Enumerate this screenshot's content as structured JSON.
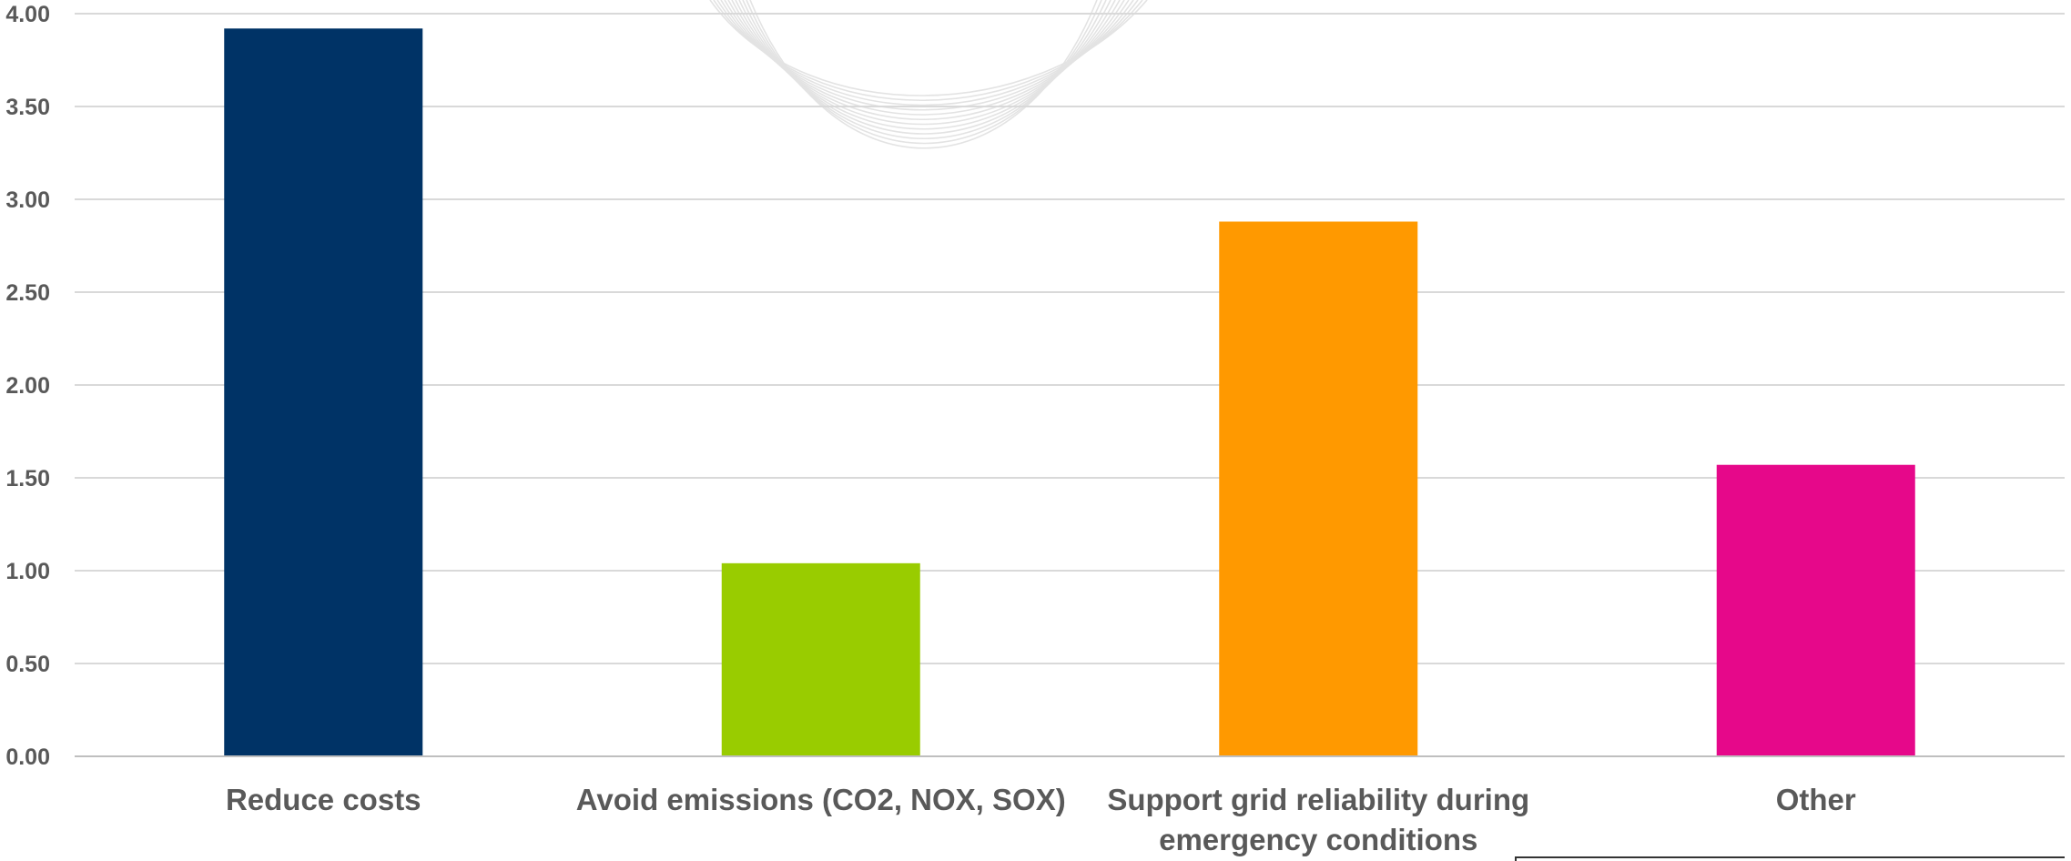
{
  "chart_data": {
    "type": "bar",
    "categories": [
      "Reduce costs",
      "Avoid emissions (CO2, NOX, SOX)",
      "Support grid reliability during emergency conditions",
      "Other"
    ],
    "category_lines": [
      [
        "Reduce costs"
      ],
      [
        "Avoid emissions (CO2, NOX, SOX)"
      ],
      [
        "Support grid reliability during",
        "emergency conditions"
      ],
      [
        "Other"
      ]
    ],
    "values": [
      3.92,
      1.04,
      2.88,
      1.57
    ],
    "colors": [
      "#003366",
      "#99cc00",
      "#ff9900",
      "#e6088a"
    ],
    "ylim": [
      0,
      4
    ],
    "yticks": [
      "0.00",
      "0.50",
      "1.00",
      "1.50",
      "2.00",
      "2.50",
      "3.00",
      "3.50",
      "4.00"
    ],
    "ytick_values": [
      0,
      0.5,
      1,
      1.5,
      2,
      2.5,
      3,
      3.5,
      4
    ],
    "grid": true,
    "legend": "none",
    "title": "",
    "xlabel": "",
    "ylabel": ""
  }
}
